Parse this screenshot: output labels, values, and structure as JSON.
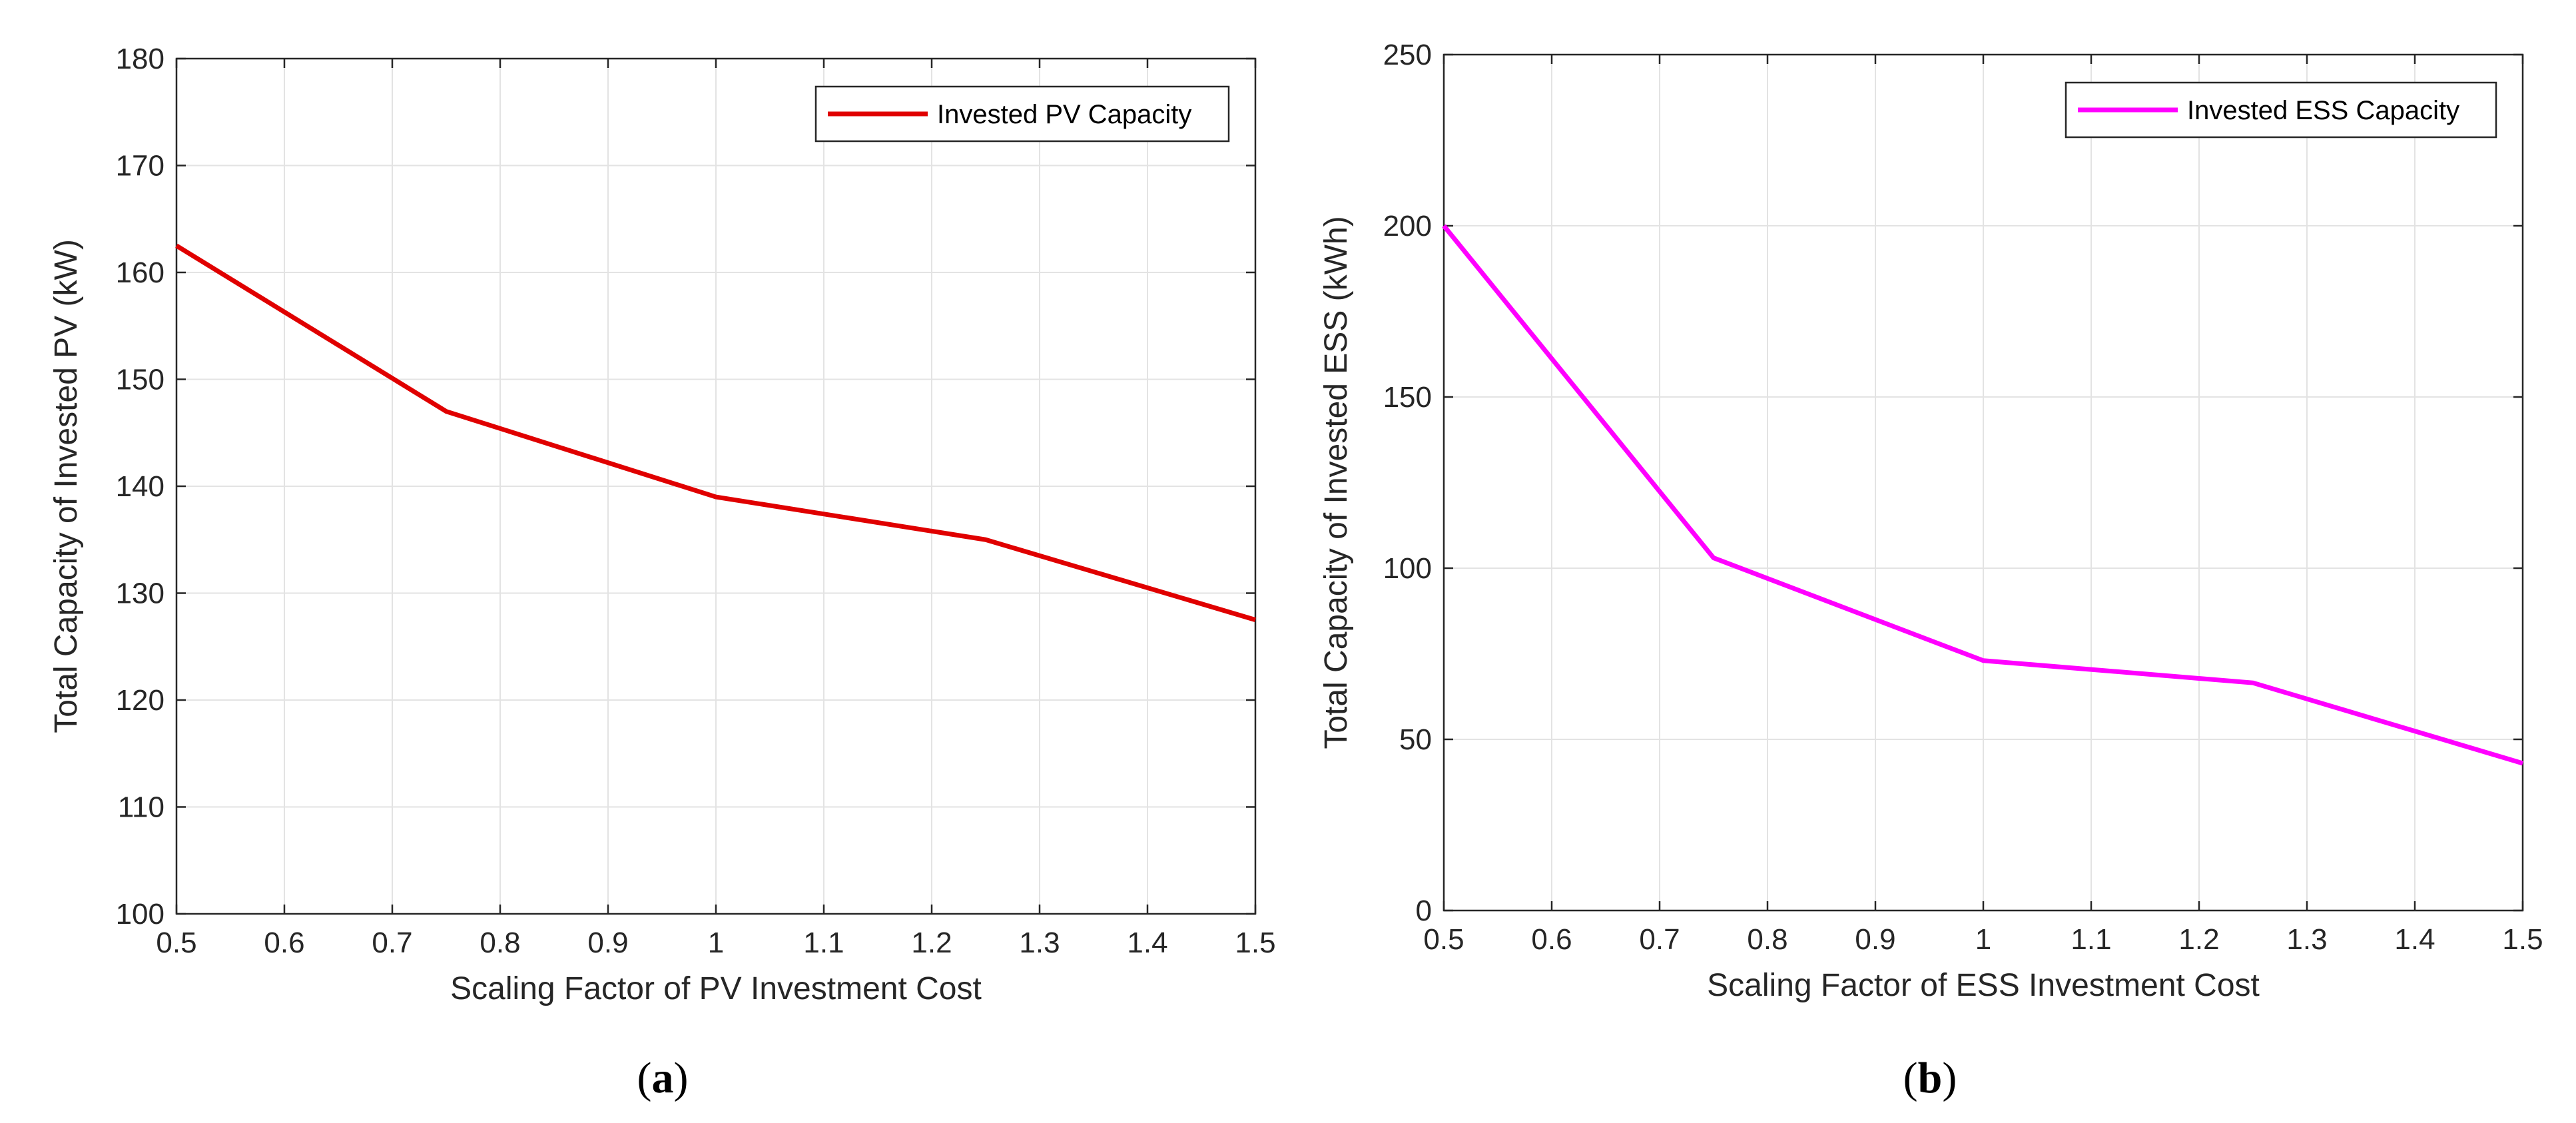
{
  "colors": {
    "series_a": "#e00000",
    "series_b": "#ff00ff",
    "axes": "#262626",
    "grid": "#e3e3e3"
  },
  "chart_data": [
    {
      "type": "line",
      "panel_label": "a",
      "xlabel": "Scaling Factor of PV Investment Cost",
      "ylabel": "Total Capacity of Invested PV (kW)",
      "xlim": [
        0.5,
        1.5
      ],
      "ylim": [
        100,
        180
      ],
      "xticks": [
        "0.5",
        "0.6",
        "0.7",
        "0.8",
        "0.9",
        "1",
        "1.1",
        "1.2",
        "1.3",
        "1.4",
        "1.5"
      ],
      "yticks": [
        "100",
        "110",
        "120",
        "130",
        "140",
        "150",
        "160",
        "170",
        "180"
      ],
      "grid": true,
      "legend_position": "top-right",
      "series": [
        {
          "name": "Invested PV Capacity",
          "color": "#e00000",
          "x": [
            0.5,
            0.75,
            1.0,
            1.25,
            1.5
          ],
          "y": [
            162.5,
            147,
            139,
            135,
            127.5
          ]
        }
      ]
    },
    {
      "type": "line",
      "panel_label": "b",
      "xlabel": "Scaling Factor of ESS Investment Cost",
      "ylabel": "Total Capacity of Invested ESS (kWh)",
      "xlim": [
        0.5,
        1.5
      ],
      "ylim": [
        0,
        250
      ],
      "xticks": [
        "0.5",
        "0.6",
        "0.7",
        "0.8",
        "0.9",
        "1",
        "1.1",
        "1.2",
        "1.3",
        "1.4",
        "1.5"
      ],
      "yticks": [
        "0",
        "50",
        "100",
        "150",
        "200",
        "250"
      ],
      "grid": true,
      "legend_position": "top-right",
      "series": [
        {
          "name": "Invested ESS Capacity",
          "color": "#ff00ff",
          "x": [
            0.5,
            0.75,
            1.0,
            1.25,
            1.5
          ],
          "y": [
            200,
            103,
            73,
            66.5,
            43
          ]
        }
      ]
    }
  ]
}
